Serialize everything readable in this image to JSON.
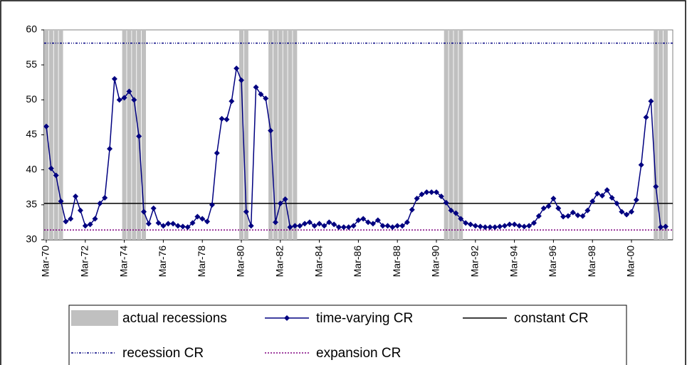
{
  "chart_data": {
    "type": "line",
    "categories": [
      "Mar-70",
      null,
      null,
      null,
      null,
      null,
      null,
      null,
      "Mar-72",
      null,
      null,
      null,
      null,
      null,
      null,
      null,
      "Mar-74",
      null,
      null,
      null,
      null,
      null,
      null,
      null,
      "Mar-76",
      null,
      null,
      null,
      null,
      null,
      null,
      null,
      "Mar-78",
      null,
      null,
      null,
      null,
      null,
      null,
      null,
      "Mar-80",
      null,
      null,
      null,
      null,
      null,
      null,
      null,
      "Mar-82",
      null,
      null,
      null,
      null,
      null,
      null,
      null,
      "Mar-84",
      null,
      null,
      null,
      null,
      null,
      null,
      null,
      "Mar-86",
      null,
      null,
      null,
      null,
      null,
      null,
      null,
      "Mar-88",
      null,
      null,
      null,
      null,
      null,
      null,
      null,
      "Mar-90",
      null,
      null,
      null,
      null,
      null,
      null,
      null,
      "Mar-92",
      null,
      null,
      null,
      null,
      null,
      null,
      null,
      "Mar-94",
      null,
      null,
      null,
      null,
      null,
      null,
      null,
      "Mar-96",
      null,
      null,
      null,
      null,
      null,
      null,
      null,
      "Mar-98",
      null,
      null,
      null,
      null,
      null,
      null,
      null,
      "Mar-00",
      null,
      null,
      null,
      null,
      null,
      null,
      null
    ],
    "series": [
      {
        "name": "actual recessions",
        "kind": "bar",
        "color": "#c0c0c0",
        "values": [
          60,
          60,
          60,
          60,
          null,
          null,
          null,
          null,
          null,
          null,
          null,
          null,
          null,
          null,
          null,
          null,
          60,
          60,
          60,
          60,
          60,
          null,
          null,
          null,
          null,
          null,
          null,
          null,
          null,
          null,
          null,
          null,
          null,
          null,
          null,
          null,
          null,
          null,
          null,
          null,
          60,
          60,
          null,
          null,
          null,
          null,
          60,
          60,
          60,
          60,
          60,
          60,
          null,
          null,
          null,
          null,
          null,
          null,
          null,
          null,
          null,
          null,
          null,
          null,
          null,
          null,
          null,
          null,
          null,
          null,
          null,
          null,
          null,
          null,
          null,
          null,
          null,
          null,
          null,
          null,
          null,
          null,
          60,
          60,
          60,
          60,
          null,
          null,
          null,
          null,
          null,
          null,
          null,
          null,
          null,
          null,
          null,
          null,
          null,
          null,
          null,
          null,
          null,
          null,
          null,
          null,
          null,
          null,
          null,
          null,
          null,
          null,
          null,
          null,
          null,
          null,
          null,
          null,
          null,
          null,
          null,
          null,
          null,
          null,
          null,
          60,
          60,
          60
        ]
      },
      {
        "name": "time-varying CR",
        "kind": "line",
        "color": "#000080",
        "values": [
          46.2,
          40.2,
          39.2,
          35.5,
          32.6,
          33.0,
          36.2,
          34.2,
          32.0,
          32.2,
          33.0,
          35.2,
          36.0,
          43.0,
          53.0,
          50.0,
          50.3,
          51.2,
          50.0,
          44.8,
          34.0,
          32.3,
          34.5,
          32.4,
          32.0,
          32.3,
          32.3,
          32.0,
          31.9,
          31.8,
          32.4,
          33.3,
          33.0,
          32.6,
          35.0,
          42.4,
          47.3,
          47.2,
          49.8,
          54.5,
          52.8,
          34.0,
          32.0,
          51.8,
          50.8,
          50.2,
          45.6,
          32.5,
          35.2,
          35.8,
          31.8,
          32.0,
          32.0,
          32.3,
          32.5,
          32.0,
          32.3,
          32.0,
          32.5,
          32.2,
          31.8,
          31.8,
          31.8,
          32.0,
          32.8,
          33.0,
          32.5,
          32.3,
          32.8,
          32.0,
          32.0,
          31.8,
          32.0,
          32.0,
          32.5,
          34.3,
          35.9,
          36.5,
          36.8,
          36.8,
          36.8,
          36.2,
          35.3,
          34.2,
          33.8,
          33.0,
          32.4,
          32.2,
          32.0,
          31.9,
          31.8,
          31.8,
          31.8,
          31.9,
          32.0,
          32.2,
          32.2,
          32.0,
          31.9,
          32.0,
          32.4,
          33.4,
          34.5,
          34.8,
          35.9,
          34.5,
          33.3,
          33.4,
          33.9,
          33.5,
          33.4,
          34.2,
          35.5,
          36.6,
          36.3,
          37.1,
          36.0,
          35.2,
          34.0,
          33.6,
          34.0,
          35.7,
          40.7,
          47.5,
          49.8,
          37.6,
          31.8,
          31.9
        ]
      },
      {
        "name": "constant CR",
        "kind": "hline",
        "color": "#000000",
        "dash": "none",
        "value": 35.2
      },
      {
        "name": "recession CR",
        "kind": "hline",
        "color": "#000080",
        "dash": "3 2 1 2 1 2",
        "value": 58.1
      },
      {
        "name": "expansion CR",
        "kind": "hline",
        "color": "#800080",
        "dash": "2 2",
        "value": 31.4
      }
    ],
    "ylim": [
      30,
      60
    ],
    "yticks": [
      30,
      35,
      40,
      45,
      50,
      55,
      60
    ]
  }
}
